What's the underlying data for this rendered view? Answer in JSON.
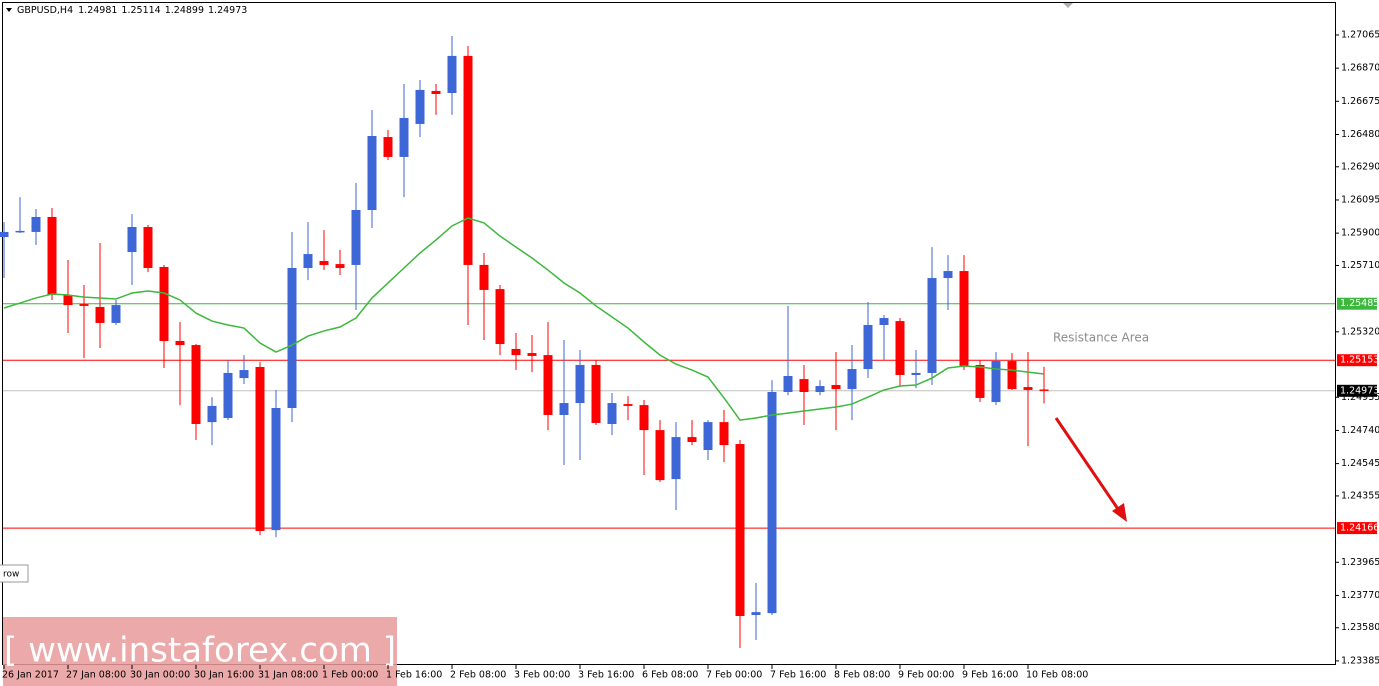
{
  "chart_data": {
    "type": "candlestick",
    "title": "GBPUSD,H4",
    "categories": [
      "26 Jan 2017",
      null,
      null,
      null,
      "27 Jan 08:00",
      null,
      null,
      null,
      "30 Jan 00:00",
      null,
      null,
      null,
      "30 Jan 16:00",
      null,
      null,
      null,
      "31 Jan 08:00",
      null,
      null,
      null,
      "1 Feb 00:00",
      null,
      null,
      null,
      "1 Feb 16:00",
      null,
      null,
      null,
      "2 Feb 08:00",
      null,
      null,
      null,
      "3 Feb 00:00",
      null,
      null,
      null,
      "3 Feb 16:00",
      null,
      null,
      null,
      "6 Feb 08:00",
      null,
      null,
      null,
      "7 Feb 00:00",
      null,
      null,
      null,
      "7 Feb 16:00",
      null,
      null,
      null,
      "8 Feb 08:00",
      null,
      null,
      null,
      "9 Feb 00:00",
      null,
      null,
      null,
      "9 Feb 16:00",
      null,
      null,
      null,
      "10 Feb 08:00",
      null
    ],
    "open": [
      1.25877,
      1.25907,
      1.25907,
      1.25995,
      1.25536,
      1.25483,
      1.25466,
      1.25372,
      1.25789,
      1.25936,
      1.25701,
      1.25266,
      1.25242,
      1.24789,
      1.24813,
      1.25048,
      1.25113,
      1.24154,
      1.24872,
      1.25695,
      1.25736,
      1.25718,
      1.25713,
      1.26036,
      1.26465,
      1.26348,
      1.26542,
      1.26736,
      1.26724,
      1.26942,
      1.25713,
      1.25571,
      1.25219,
      1.25195,
      1.25183,
      1.24831,
      1.24901,
      1.25125,
      1.24778,
      1.24895,
      1.24889,
      1.24742,
      1.24454,
      1.24701,
      1.24625,
      1.24789,
      1.2466,
      1.23655,
      1.23666,
      1.24966,
      1.25042,
      1.24966,
      1.25007,
      1.24983,
      1.25101,
      1.2536,
      1.25383,
      1.25066,
      1.25078,
      1.25636,
      1.25677,
      1.25125,
      1.24907,
      1.25148,
      1.24995,
      1.24981
    ],
    "high": [
      1.25965,
      1.26112,
      1.26042,
      1.26048,
      1.25742,
      1.25595,
      1.25842,
      1.25507,
      1.26012,
      1.25948,
      1.25713,
      1.25377,
      1.25248,
      1.24936,
      1.25154,
      1.25183,
      1.25142,
      1.24978,
      1.25907,
      1.25965,
      1.25918,
      1.25801,
      1.26195,
      1.26624,
      1.26506,
      1.26777,
      1.268,
      1.26777,
      1.27059,
      1.27,
      1.25783,
      1.25595,
      1.25313,
      1.25301,
      1.25377,
      1.25272,
      1.25213,
      1.25154,
      1.2496,
      1.24942,
      1.24919,
      1.24801,
      1.24789,
      1.24801,
      1.24801,
      1.2486,
      1.24684,
      1.23843,
      1.25036,
      1.25472,
      1.25125,
      1.25036,
      1.25201,
      1.25242,
      1.25495,
      1.25419,
      1.25401,
      1.25213,
      1.25818,
      1.25771,
      1.25771,
      1.25154,
      1.25201,
      1.25195,
      1.25201,
      1.25114
    ],
    "low": [
      1.25636,
      1.25901,
      1.2583,
      1.25507,
      1.25313,
      1.25166,
      1.25225,
      1.2536,
      1.25595,
      1.25671,
      1.25107,
      1.24889,
      1.24684,
      1.24654,
      1.24801,
      1.25013,
      1.24125,
      1.24113,
      1.24789,
      1.25624,
      1.25683,
      1.25654,
      1.25448,
      1.2593,
      1.2633,
      1.26112,
      1.26465,
      1.26595,
      1.26595,
      1.2536,
      1.25272,
      1.25183,
      1.25095,
      1.25083,
      1.24742,
      1.24537,
      1.24566,
      1.24772,
      1.24713,
      1.24801,
      1.24478,
      1.24437,
      1.24272,
      1.24654,
      1.24566,
      1.24554,
      1.23461,
      1.23508,
      1.23655,
      1.24948,
      1.24772,
      1.24948,
      1.24742,
      1.24801,
      1.25048,
      1.25154,
      1.25001,
      1.24989,
      1.25007,
      1.25448,
      1.25095,
      1.24907,
      1.24889,
      1.24978,
      1.24648,
      1.24899
    ],
    "close": [
      1.25907,
      1.25913,
      1.25995,
      1.25536,
      1.25477,
      1.25472,
      1.25372,
      1.25477,
      1.25936,
      1.25695,
      1.25266,
      1.25242,
      1.24778,
      1.24884,
      1.25078,
      1.25095,
      1.24149,
      1.24872,
      1.25695,
      1.25777,
      1.25713,
      1.25695,
      1.26036,
      1.26471,
      1.26348,
      1.26577,
      1.26742,
      1.26718,
      1.26942,
      1.25713,
      1.25566,
      1.25248,
      1.25183,
      1.25178,
      1.24831,
      1.24901,
      1.25125,
      1.24784,
      1.24901,
      1.24884,
      1.24742,
      1.24448,
      1.24701,
      1.24672,
      1.24789,
      1.24654,
      1.23649,
      1.23672,
      1.24966,
      1.2506,
      1.24966,
      1.25001,
      1.24983,
      1.25101,
      1.2536,
      1.25401,
      1.25066,
      1.25078,
      1.25636,
      1.25677,
      1.25119,
      1.24931,
      1.25148,
      1.24983,
      1.24978,
      1.24973
    ],
    "up_color": "#3d66d6",
    "down_color": "#ff0000",
    "ma": {
      "color": "#3cb83c",
      "values": [
        1.2546,
        1.25489,
        1.25519,
        1.25542,
        1.25536,
        1.25524,
        1.25519,
        1.25513,
        1.25548,
        1.2556,
        1.25548,
        1.25507,
        1.2543,
        1.25383,
        1.2536,
        1.25342,
        1.25254,
        1.25201,
        1.25242,
        1.25295,
        1.25325,
        1.25348,
        1.25401,
        1.25519,
        1.25607,
        1.25695,
        1.25783,
        1.2586,
        1.25942,
        1.25989,
        1.2596,
        1.25883,
        1.25818,
        1.25754,
        1.25683,
        1.25607,
        1.25548,
        1.25472,
        1.25407,
        1.25342,
        1.2526,
        1.25183,
        1.2513,
        1.25095,
        1.25054,
        1.24931,
        1.24801,
        1.24813,
        1.24831,
        1.24842,
        1.24854,
        1.24866,
        1.24878,
        1.24895,
        1.24936,
        1.24978,
        1.25001,
        1.25007,
        1.25048,
        1.25107,
        1.25119,
        1.25113,
        1.25101,
        1.25095,
        1.25083,
        1.25072
      ]
    },
    "levels": [
      {
        "value": 1.25485,
        "color": "#3cb83c"
      },
      {
        "value": 1.25153,
        "color": "#ff0000"
      },
      {
        "value": 1.24166,
        "color": "#ff0000"
      }
    ],
    "current_color": "#c0c0c0",
    "annotation": "Resistance Area",
    "watermark": "[ www.instaforex.com ]",
    "button_label": "row",
    "ylim": [
      1.23361,
      1.27253
    ],
    "yticks": [
      1.27065,
      {
        "value": 1.2687,
        "label": "1.26870"
      },
      1.26675,
      {
        "value": 1.2648,
        "label": "1.26480"
      },
      {
        "value": 1.2629,
        "label": "1.26290"
      },
      1.26095,
      {
        "value": 1.259,
        "label": "1.25900"
      },
      {
        "value": 1.2571,
        "label": "1.25710"
      },
      {
        "value": 1.2532,
        "label": "1.25320"
      },
      1.24935,
      {
        "value": 1.2474,
        "label": "1.24740"
      },
      1.24545,
      1.24355,
      1.23965,
      {
        "value": 1.2377,
        "label": "1.23770"
      },
      {
        "value": 1.2358,
        "label": "1.23580"
      },
      1.23385
    ]
  }
}
